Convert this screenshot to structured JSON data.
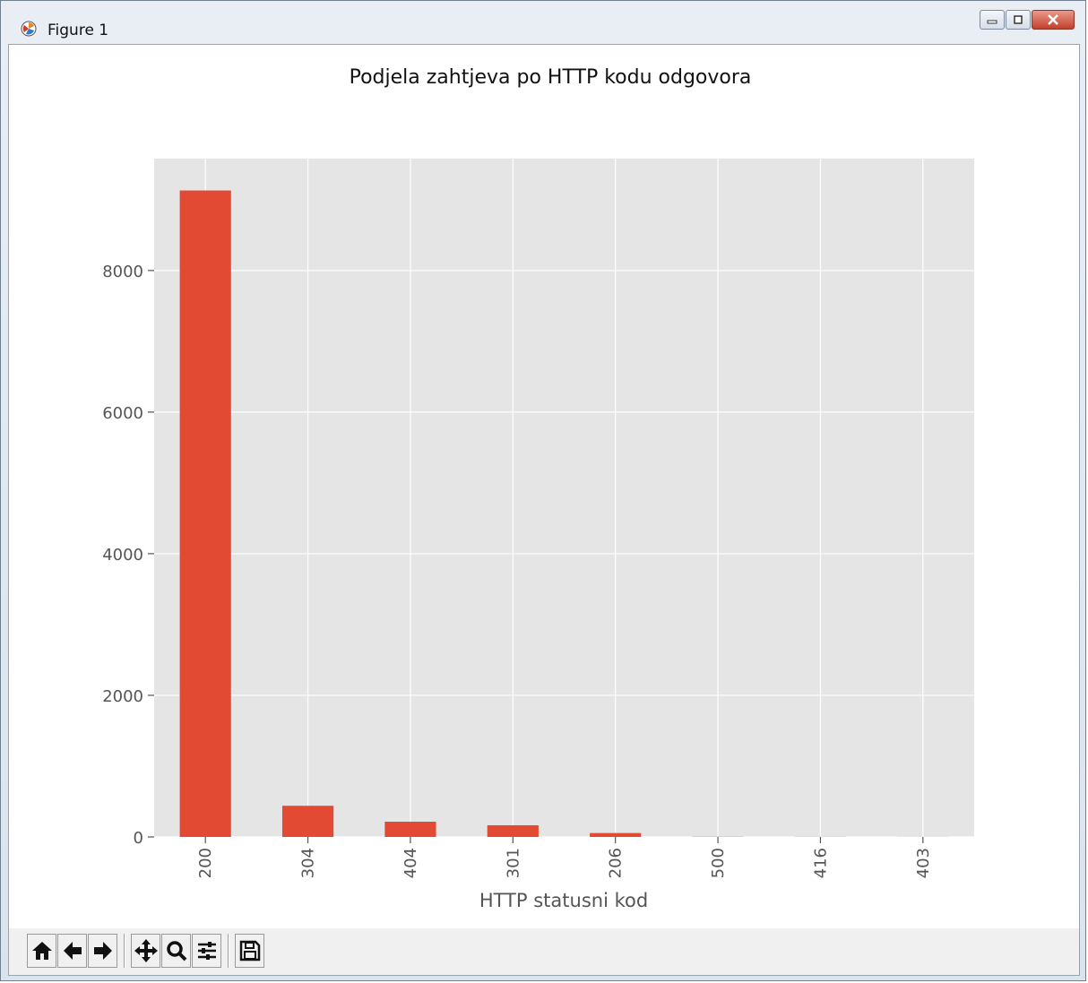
{
  "window": {
    "title": "Figure 1",
    "icon": "matplotlib-icon",
    "controls": [
      "minimize-icon",
      "maximize-icon",
      "close-icon"
    ]
  },
  "toolbar": {
    "buttons": [
      "home-icon",
      "back-arrow-icon",
      "forward-arrow-icon",
      "pan-icon",
      "zoom-icon",
      "configure-subplots-icon",
      "save-icon"
    ]
  },
  "colors": {
    "bar": "#e24a33",
    "plot_bg": "#e5e5e5",
    "grid": "#ffffff",
    "tick_text": "#555555"
  },
  "chart_data": {
    "type": "bar",
    "title": "Podjela zahtjeva po HTTP kodu odgovora",
    "xlabel": "HTTP statusni kod",
    "ylabel": "",
    "categories": [
      "200",
      "304",
      "404",
      "301",
      "206",
      "500",
      "416",
      "403"
    ],
    "values": [
      9130,
      440,
      215,
      165,
      55,
      3,
      2,
      1
    ],
    "ylim": [
      0,
      9580
    ],
    "yticks": [
      0,
      2000,
      4000,
      6000,
      8000
    ],
    "ytick_labels": [
      "0",
      "2000",
      "4000",
      "6000",
      "8000"
    ],
    "grid": true,
    "x_tick_rotation": "vertical"
  }
}
